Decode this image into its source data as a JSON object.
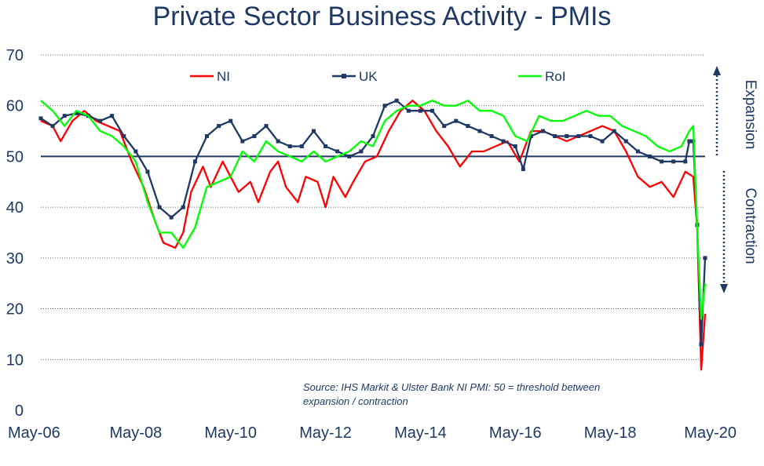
{
  "chart_data": {
    "type": "line",
    "title": "Private Sector Business Activity - PMIs",
    "xlabel": "",
    "ylabel": "",
    "ylim": [
      0,
      70
    ],
    "yticks": [
      0,
      10,
      20,
      30,
      40,
      50,
      60,
      70
    ],
    "xlim": [
      "2006-05",
      "2020-05"
    ],
    "xticks": [
      "May-06",
      "May-08",
      "May-10",
      "May-12",
      "May-14",
      "May-16",
      "May-18",
      "May-20"
    ],
    "grid": "horizontal-dotted",
    "threshold": 50,
    "legend": "top",
    "annotations": {
      "expansion": "Expansion",
      "contraction": "Contraction",
      "source": "Source: IHS Markit & Ulster Bank NI PMI: 50 = threshold between",
      "source_line2": "expansion / contraction"
    },
    "series": [
      {
        "name": "NI",
        "color": "#ff0000",
        "points": [
          [
            "2006-05",
            57
          ],
          [
            "2006-08",
            56
          ],
          [
            "2006-10",
            53
          ],
          [
            "2007-01",
            57
          ],
          [
            "2007-04",
            59
          ],
          [
            "2007-07",
            57
          ],
          [
            "2007-10",
            56
          ],
          [
            "2008-01",
            55
          ],
          [
            "2008-04",
            49
          ],
          [
            "2008-07",
            44
          ],
          [
            "2008-10",
            37
          ],
          [
            "2008-12",
            33
          ],
          [
            "2009-03",
            32
          ],
          [
            "2009-05",
            35
          ],
          [
            "2009-07",
            43
          ],
          [
            "2009-10",
            48
          ],
          [
            "2009-12",
            44
          ],
          [
            "2010-03",
            49
          ],
          [
            "2010-05",
            46
          ],
          [
            "2010-07",
            43
          ],
          [
            "2010-10",
            45
          ],
          [
            "2010-12",
            41
          ],
          [
            "2011-03",
            47
          ],
          [
            "2011-05",
            49
          ],
          [
            "2011-07",
            44
          ],
          [
            "2011-10",
            41
          ],
          [
            "2011-12",
            46
          ],
          [
            "2012-03",
            45
          ],
          [
            "2012-05",
            40
          ],
          [
            "2012-07",
            46
          ],
          [
            "2012-10",
            42
          ],
          [
            "2012-12",
            45
          ],
          [
            "2013-03",
            49
          ],
          [
            "2013-06",
            50
          ],
          [
            "2013-09",
            55
          ],
          [
            "2013-12",
            59
          ],
          [
            "2014-03",
            61
          ],
          [
            "2014-06",
            59
          ],
          [
            "2014-09",
            55
          ],
          [
            "2014-12",
            52
          ],
          [
            "2015-03",
            48
          ],
          [
            "2015-06",
            51
          ],
          [
            "2015-09",
            51
          ],
          [
            "2015-12",
            52
          ],
          [
            "2016-03",
            53
          ],
          [
            "2016-06",
            49
          ],
          [
            "2016-09",
            55
          ],
          [
            "2016-12",
            55
          ],
          [
            "2017-03",
            54
          ],
          [
            "2017-06",
            53
          ],
          [
            "2017-09",
            54
          ],
          [
            "2017-12",
            55
          ],
          [
            "2018-03",
            56
          ],
          [
            "2018-06",
            55
          ],
          [
            "2018-09",
            51
          ],
          [
            "2018-12",
            46
          ],
          [
            "2019-03",
            44
          ],
          [
            "2019-06",
            45
          ],
          [
            "2019-09",
            42
          ],
          [
            "2019-12",
            47
          ],
          [
            "2020-02",
            46
          ],
          [
            "2020-03",
            36
          ],
          [
            "2020-04",
            8
          ],
          [
            "2020-05",
            19
          ]
        ]
      },
      {
        "name": "UK",
        "color": "#1f3864",
        "points": [
          [
            "2006-05",
            57.5
          ],
          [
            "2006-08",
            56
          ],
          [
            "2006-11",
            58
          ],
          [
            "2007-02",
            58.5
          ],
          [
            "2007-05",
            58
          ],
          [
            "2007-08",
            57
          ],
          [
            "2007-11",
            58
          ],
          [
            "2008-02",
            54
          ],
          [
            "2008-05",
            51
          ],
          [
            "2008-08",
            47
          ],
          [
            "2008-11",
            40
          ],
          [
            "2009-02",
            38
          ],
          [
            "2009-05",
            40
          ],
          [
            "2009-08",
            49
          ],
          [
            "2009-11",
            54
          ],
          [
            "2010-02",
            56
          ],
          [
            "2010-05",
            57
          ],
          [
            "2010-08",
            53
          ],
          [
            "2010-11",
            54
          ],
          [
            "2011-02",
            56
          ],
          [
            "2011-05",
            53
          ],
          [
            "2011-08",
            52
          ],
          [
            "2011-11",
            52
          ],
          [
            "2012-02",
            55
          ],
          [
            "2012-05",
            52
          ],
          [
            "2012-08",
            51
          ],
          [
            "2012-11",
            50
          ],
          [
            "2013-02",
            51
          ],
          [
            "2013-05",
            54
          ],
          [
            "2013-08",
            60
          ],
          [
            "2013-11",
            61
          ],
          [
            "2014-02",
            59
          ],
          [
            "2014-05",
            59
          ],
          [
            "2014-08",
            59
          ],
          [
            "2014-11",
            56
          ],
          [
            "2015-02",
            57
          ],
          [
            "2015-05",
            56
          ],
          [
            "2015-08",
            55
          ],
          [
            "2015-11",
            54
          ],
          [
            "2016-02",
            53
          ],
          [
            "2016-05",
            52
          ],
          [
            "2016-07",
            47.5
          ],
          [
            "2016-09",
            54
          ],
          [
            "2016-12",
            55
          ],
          [
            "2017-03",
            54
          ],
          [
            "2017-06",
            54
          ],
          [
            "2017-09",
            54
          ],
          [
            "2017-12",
            54
          ],
          [
            "2018-03",
            53
          ],
          [
            "2018-06",
            55
          ],
          [
            "2018-09",
            53
          ],
          [
            "2018-12",
            51
          ],
          [
            "2019-03",
            50
          ],
          [
            "2019-06",
            49
          ],
          [
            "2019-09",
            49
          ],
          [
            "2019-12",
            49
          ],
          [
            "2020-01",
            53
          ],
          [
            "2020-02",
            53
          ],
          [
            "2020-03",
            36.5
          ],
          [
            "2020-04",
            13
          ],
          [
            "2020-05",
            30
          ]
        ]
      },
      {
        "name": "RoI",
        "color": "#00ff00",
        "points": [
          [
            "2006-05",
            61
          ],
          [
            "2006-08",
            59
          ],
          [
            "2006-11",
            56
          ],
          [
            "2007-02",
            59
          ],
          [
            "2007-05",
            58
          ],
          [
            "2007-08",
            55
          ],
          [
            "2007-11",
            54
          ],
          [
            "2008-02",
            52
          ],
          [
            "2008-05",
            49
          ],
          [
            "2008-08",
            41
          ],
          [
            "2008-11",
            35
          ],
          [
            "2009-02",
            35
          ],
          [
            "2009-05",
            32
          ],
          [
            "2009-08",
            36
          ],
          [
            "2009-11",
            44
          ],
          [
            "2010-02",
            45
          ],
          [
            "2010-05",
            46
          ],
          [
            "2010-08",
            51
          ],
          [
            "2010-11",
            49
          ],
          [
            "2011-02",
            53
          ],
          [
            "2011-05",
            51
          ],
          [
            "2011-08",
            50
          ],
          [
            "2011-11",
            49
          ],
          [
            "2012-02",
            51
          ],
          [
            "2012-05",
            49
          ],
          [
            "2012-08",
            50
          ],
          [
            "2012-11",
            51
          ],
          [
            "2013-02",
            53
          ],
          [
            "2013-05",
            52
          ],
          [
            "2013-08",
            57
          ],
          [
            "2013-11",
            59
          ],
          [
            "2014-02",
            60
          ],
          [
            "2014-05",
            60
          ],
          [
            "2014-08",
            61
          ],
          [
            "2014-11",
            60
          ],
          [
            "2015-02",
            60
          ],
          [
            "2015-05",
            61
          ],
          [
            "2015-08",
            59
          ],
          [
            "2015-11",
            59
          ],
          [
            "2016-02",
            58
          ],
          [
            "2016-05",
            54
          ],
          [
            "2016-08",
            53
          ],
          [
            "2016-11",
            58
          ],
          [
            "2017-02",
            57
          ],
          [
            "2017-05",
            57
          ],
          [
            "2017-08",
            58
          ],
          [
            "2017-11",
            59
          ],
          [
            "2018-02",
            58
          ],
          [
            "2018-05",
            58
          ],
          [
            "2018-08",
            56
          ],
          [
            "2018-11",
            55
          ],
          [
            "2019-02",
            54
          ],
          [
            "2019-05",
            52
          ],
          [
            "2019-08",
            51
          ],
          [
            "2019-11",
            52
          ],
          [
            "2020-01",
            55
          ],
          [
            "2020-02",
            56
          ],
          [
            "2020-03",
            36
          ],
          [
            "2020-04",
            18
          ],
          [
            "2020-05",
            25
          ]
        ]
      }
    ]
  }
}
